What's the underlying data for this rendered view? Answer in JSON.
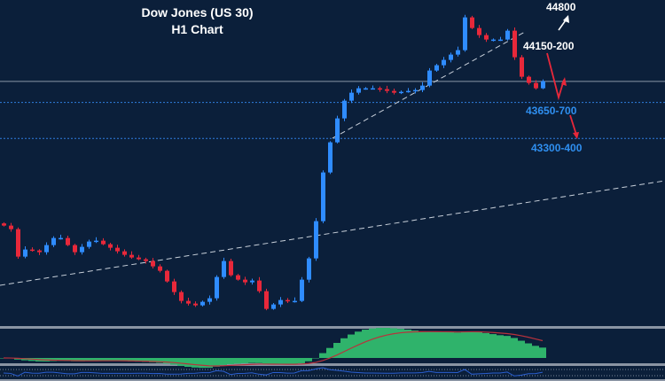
{
  "chart_data": {
    "type": "candlestick",
    "title": "Dow Jones (US 30)",
    "subtitle": "H1 Chart",
    "ylim": [
      41640,
      44600
    ],
    "close": [
      42563,
      42531,
      42283,
      42347,
      42339,
      42323,
      42387,
      42451,
      42451,
      42387,
      42323,
      42371,
      42419,
      42427,
      42395,
      42363,
      42331,
      42299,
      42275,
      42259,
      42243,
      42195,
      42155,
      42059,
      41963,
      41883,
      41859,
      41843,
      41875,
      41907,
      42099,
      42243,
      42115,
      42075,
      42051,
      42067,
      41971,
      41811,
      41851,
      41891,
      41883,
      41883,
      42075,
      42267,
      42603,
      43043,
      43315,
      43531,
      43691,
      43763,
      43803,
      43803,
      43803,
      43795,
      43779,
      43763,
      43771,
      43779,
      43787,
      43827,
      43963,
      44011,
      44059,
      44107,
      44147,
      44443,
      44347,
      44283,
      44243,
      44243,
      44243,
      44323,
      44083,
      43907,
      43851,
      43803,
      43867
    ],
    "levels": [
      {
        "price": 43865,
        "style": "solid",
        "color": "#8a97a8"
      },
      {
        "price": 43675,
        "style": "dotted",
        "color": "#2f7fe0",
        "label": "43650-700"
      },
      {
        "price": 43350,
        "style": "dotted",
        "color": "#2f7fe0",
        "label": "43300-400"
      }
    ],
    "annotations": [
      {
        "label": "44800",
        "color": "#ffffff"
      },
      {
        "label": "44150-200",
        "color": "#ffffff"
      }
    ],
    "colors": {
      "background": "#0b1f3a",
      "up": "#2f8cff",
      "down": "#e8283a",
      "histogram": "#2fb36b",
      "signal": "#b8323c",
      "oscillator": "#2a5fd0"
    },
    "indicators": [
      "MACD histogram with signal line",
      "oscillator"
    ]
  }
}
